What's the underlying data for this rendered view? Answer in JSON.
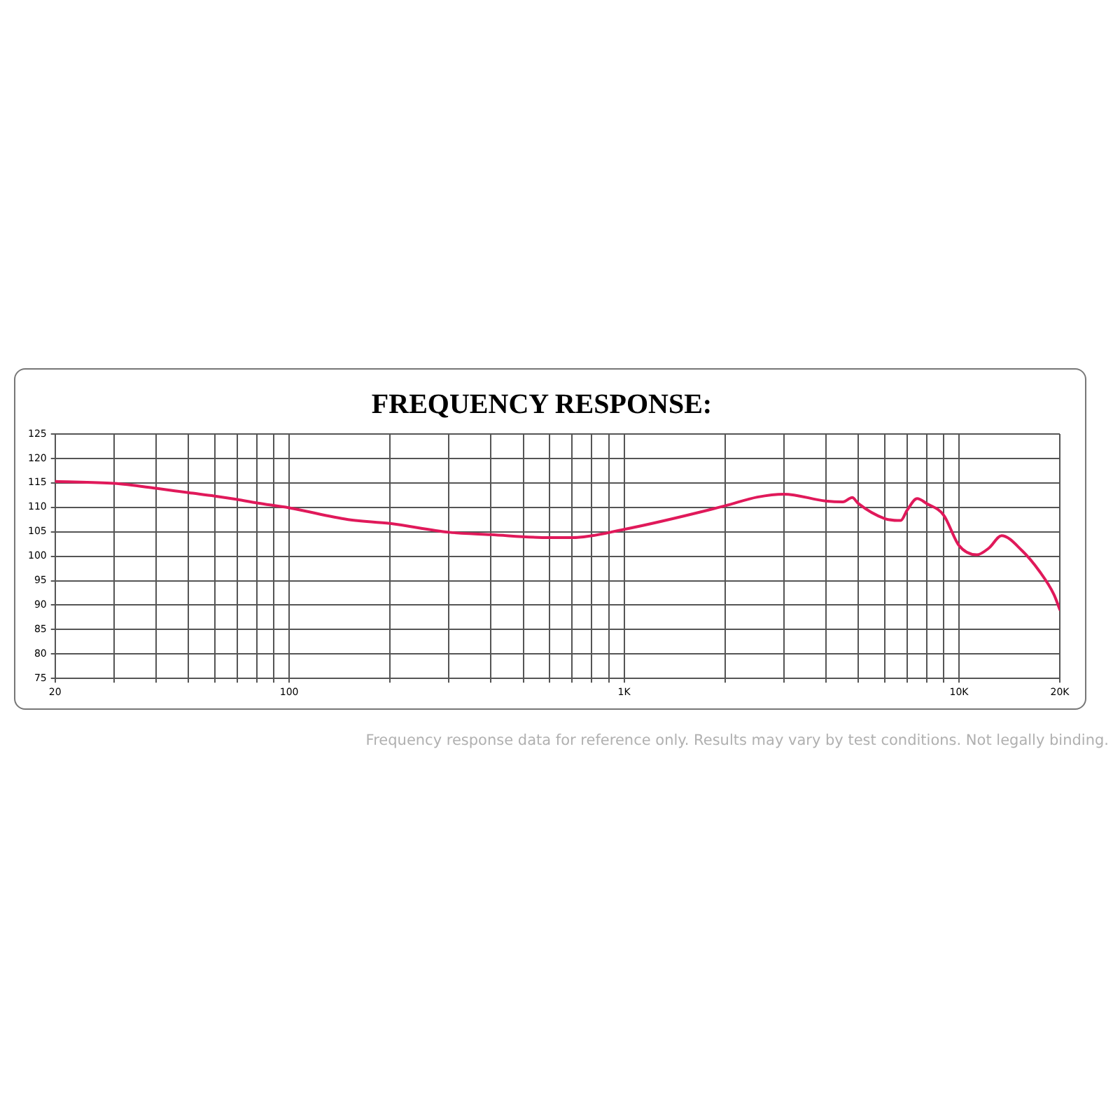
{
  "chart_data": {
    "type": "line",
    "title": "FREQUENCY RESPONSE:",
    "annotations": [
      "Frequency response data for reference only. Results may vary by test conditions. Not legally binding."
    ],
    "x": [
      20,
      30,
      40,
      50,
      60,
      70,
      80,
      100,
      150,
      200,
      300,
      400,
      600,
      700,
      1000,
      2000,
      2500,
      3000,
      4000,
      4500,
      4800,
      5000,
      6000,
      6700,
      7000,
      7500,
      8000,
      9000,
      10000,
      11300,
      12300,
      13400,
      15400,
      17400,
      19200,
      20000
    ],
    "series": [
      {
        "color": "#e0195a",
        "values": [
          115.3,
          114.9,
          113.9,
          113.0,
          112.3,
          111.6,
          110.9,
          109.9,
          107.5,
          106.7,
          104.9,
          104.4,
          103.8,
          103.8,
          105.5,
          110.3,
          112.1,
          112.7,
          111.3,
          111.1,
          112.0,
          110.8,
          107.7,
          107.3,
          109.4,
          111.8,
          110.8,
          108.4,
          102.2,
          100.3,
          101.7,
          104.2,
          101.2,
          96.9,
          92.2,
          89.1
        ]
      }
    ],
    "log": "x",
    "xlim": [
      20,
      20000
    ],
    "xticks": [
      20,
      {
        "value": 30,
        "label": null
      },
      {
        "value": 40,
        "label": null
      },
      {
        "value": 50,
        "label": null
      },
      {
        "value": 60,
        "label": null
      },
      {
        "value": 70,
        "label": null
      },
      {
        "value": 80,
        "label": null
      },
      {
        "value": 90,
        "label": null
      },
      100,
      {
        "value": 200,
        "label": null
      },
      {
        "value": 300,
        "label": null
      },
      {
        "value": 400,
        "label": null
      },
      {
        "value": 500,
        "label": null
      },
      {
        "value": 600,
        "label": null
      },
      {
        "value": 700,
        "label": null
      },
      {
        "value": 800,
        "label": null
      },
      {
        "value": 900,
        "label": null
      },
      {
        "value": 1000,
        "label": "1K"
      },
      {
        "value": 2000,
        "label": null
      },
      {
        "value": 3000,
        "label": null
      },
      {
        "value": 4000,
        "label": null
      },
      {
        "value": 5000,
        "label": null
      },
      {
        "value": 6000,
        "label": null
      },
      {
        "value": 7000,
        "label": null
      },
      {
        "value": 8000,
        "label": null
      },
      {
        "value": 9000,
        "label": null
      },
      {
        "value": 10000,
        "label": "10K"
      },
      {
        "value": 20000,
        "label": "20K"
      }
    ],
    "ylim": [
      75,
      125
    ],
    "yticks": [
      75,
      80,
      85,
      90,
      95,
      100,
      105,
      110,
      115,
      120,
      125
    ],
    "grid": true,
    "legend": false,
    "marker": "none",
    "line_style": "solid"
  }
}
